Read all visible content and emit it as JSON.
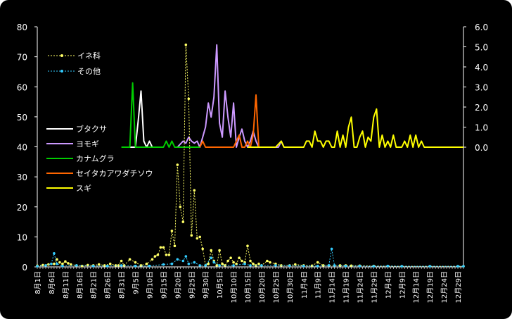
{
  "chart_data": [
    {
      "type": "line",
      "title": "",
      "xlabel": "",
      "ylabel": "",
      "ylim": [
        0,
        80
      ],
      "yticks": [
        "0",
        "10",
        "20",
        "30",
        "40",
        "50",
        "60",
        "70",
        "80"
      ],
      "x_tick_labels": [
        "8月1日",
        "8月6日",
        "8月11日",
        "8月16日",
        "8月21日",
        "8月26日",
        "8月31日",
        "9月5日",
        "9月10日",
        "9月15日",
        "9月20日",
        "9月25日",
        "9月30日",
        "10月5日",
        "10月10日",
        "10月15日",
        "10月20日",
        "10月25日",
        "10月30日",
        "11月4日",
        "11月9日",
        "11月14日",
        "11月19日",
        "11月24日",
        "11月29日",
        "12月4日",
        "12月9日",
        "12月14日",
        "12月19日",
        "12月24日",
        "12月29日"
      ],
      "legend_position": "top-left",
      "series": [
        {
          "name": "イネ科",
          "color": "#ffff66",
          "style": "dashed-markers",
          "points": [
            [
              0,
              0.4
            ],
            [
              2,
              0.6
            ],
            [
              4,
              0.8
            ],
            [
              6,
              1.0
            ],
            [
              7,
              2.5
            ],
            [
              8,
              1.5
            ],
            [
              9,
              1
            ],
            [
              10,
              1.8
            ],
            [
              11,
              1.2
            ],
            [
              12,
              0.8
            ],
            [
              14,
              0.5
            ],
            [
              16,
              0.3
            ],
            [
              18,
              0.6
            ],
            [
              20,
              0.5
            ],
            [
              22,
              0.8
            ],
            [
              24,
              0.5
            ],
            [
              26,
              1.0
            ],
            [
              28,
              0.5
            ],
            [
              29,
              0.5
            ],
            [
              30,
              2.0
            ],
            [
              31,
              0.5
            ],
            [
              33,
              2.5
            ],
            [
              35,
              1.5
            ],
            [
              37,
              0.5
            ],
            [
              39,
              1.0
            ],
            [
              41,
              2.5
            ],
            [
              42,
              3.5
            ],
            [
              43,
              4.0
            ],
            [
              44,
              6.5
            ],
            [
              45,
              6.5
            ],
            [
              46,
              4.0
            ],
            [
              47,
              4.0
            ],
            [
              48,
              12.0
            ],
            [
              49,
              7.0
            ],
            [
              50,
              34.0
            ],
            [
              51,
              20.0
            ],
            [
              52,
              15.0
            ],
            [
              53,
              74.0
            ],
            [
              54,
              56.0
            ],
            [
              55,
              10.5
            ],
            [
              56,
              25.5
            ],
            [
              57,
              9.5
            ],
            [
              58,
              10.0
            ],
            [
              59,
              6.0
            ],
            [
              60,
              0.5
            ],
            [
              61,
              1.0
            ],
            [
              62,
              5.5
            ],
            [
              63,
              2.0
            ],
            [
              64,
              0.5
            ],
            [
              65,
              5.5
            ],
            [
              66,
              1.0
            ],
            [
              67,
              0.5
            ],
            [
              68,
              2.0
            ],
            [
              69,
              3.0
            ],
            [
              70,
              1.5
            ],
            [
              71,
              1.0
            ],
            [
              72,
              3.0
            ],
            [
              73,
              2.0
            ],
            [
              74,
              1.5
            ],
            [
              75,
              7.0
            ],
            [
              76,
              2.0
            ],
            [
              77,
              1.0
            ],
            [
              78,
              0.5
            ],
            [
              79,
              1.0
            ],
            [
              80,
              0.5
            ],
            [
              82,
              2.0
            ],
            [
              83,
              1.5
            ],
            [
              85,
              1.0
            ],
            [
              87,
              0.5
            ],
            [
              90,
              0.5
            ],
            [
              92,
              0.8
            ],
            [
              95,
              0.5
            ],
            [
              98,
              0.4
            ],
            [
              100,
              1.5
            ],
            [
              102,
              0.5
            ],
            [
              104,
              0.5
            ],
            [
              108,
              0.5
            ],
            [
              110,
              0.5
            ],
            [
              112,
              0.4
            ],
            [
              115,
              0.4
            ],
            [
              120,
              0.3
            ],
            [
              130,
              0.2
            ],
            [
              140,
              0.2
            ],
            [
              150,
              0.2
            ],
            [
              152,
              0.2
            ]
          ]
        },
        {
          "name": "その他",
          "color": "#33ccff",
          "style": "dashed-markers",
          "points": [
            [
              0,
              0.2
            ],
            [
              3,
              0.5
            ],
            [
              5,
              1.0
            ],
            [
              6,
              4.5
            ],
            [
              7,
              1.0
            ],
            [
              9,
              0.3
            ],
            [
              14,
              0.5
            ],
            [
              20,
              0.3
            ],
            [
              25,
              0.3
            ],
            [
              30,
              0.5
            ],
            [
              35,
              0.3
            ],
            [
              40,
              0.3
            ],
            [
              45,
              0.8
            ],
            [
              48,
              1.0
            ],
            [
              50,
              2.5
            ],
            [
              52,
              2.0
            ],
            [
              53,
              3.5
            ],
            [
              54,
              1.0
            ],
            [
              56,
              1.5
            ],
            [
              58,
              0.5
            ],
            [
              60,
              0.5
            ],
            [
              62,
              3.0
            ],
            [
              63,
              1.5
            ],
            [
              65,
              0.5
            ],
            [
              70,
              0.5
            ],
            [
              74,
              1.0
            ],
            [
              76,
              0.5
            ],
            [
              80,
              0.5
            ],
            [
              85,
              0.5
            ],
            [
              90,
              0.4
            ],
            [
              95,
              0.3
            ],
            [
              100,
              0.3
            ],
            [
              104,
              0.5
            ],
            [
              105,
              6.0
            ],
            [
              106,
              0.5
            ],
            [
              110,
              0.3
            ],
            [
              115,
              0.3
            ],
            [
              120,
              0.2
            ],
            [
              125,
              0.3
            ],
            [
              130,
              0.2
            ],
            [
              140,
              0.2
            ],
            [
              150,
              0.2
            ],
            [
              152,
              0.2
            ]
          ]
        }
      ]
    },
    {
      "type": "line",
      "title": "",
      "ylim": [
        0,
        6.0
      ],
      "yticks": [
        "0.0",
        "1.0",
        "2.0",
        "3.0",
        "4.0",
        "5.0",
        "6.0"
      ],
      "legend_position": "left",
      "series": [
        {
          "name": "ブタクサ",
          "color": "#ffffff",
          "points": [
            [
              31,
              0
            ],
            [
              35,
              0
            ],
            [
              36,
              1.3
            ],
            [
              37,
              2.8
            ],
            [
              38,
              0.3
            ],
            [
              39,
              0
            ],
            [
              40,
              0.3
            ],
            [
              41,
              0
            ],
            [
              42,
              0
            ]
          ]
        },
        {
          "name": "ヨモギ",
          "color": "#cc99ff",
          "points": [
            [
              50,
              0
            ],
            [
              52,
              0.3
            ],
            [
              53,
              0.2
            ],
            [
              54,
              0.5
            ],
            [
              55,
              0.3
            ],
            [
              56,
              0.2
            ],
            [
              57,
              0.3
            ],
            [
              58,
              0
            ],
            [
              59,
              0.5
            ],
            [
              60,
              1.0
            ],
            [
              61,
              2.2
            ],
            [
              62,
              1.5
            ],
            [
              63,
              2.5
            ],
            [
              64,
              5.1
            ],
            [
              65,
              1.2
            ],
            [
              66,
              0.5
            ],
            [
              67,
              2.8
            ],
            [
              68,
              1.5
            ],
            [
              69,
              0.5
            ],
            [
              70,
              2.2
            ],
            [
              71,
              0
            ],
            [
              72,
              0.5
            ],
            [
              73,
              0.9
            ],
            [
              74,
              0.3
            ],
            [
              75,
              0
            ],
            [
              76,
              0.3
            ],
            [
              77,
              0.8
            ],
            [
              78,
              0.3
            ],
            [
              79,
              0
            ],
            [
              80,
              0
            ],
            [
              81,
              0
            ],
            [
              82,
              0
            ],
            [
              83,
              0
            ],
            [
              84,
              0
            ],
            [
              85,
              0
            ],
            [
              86,
              0
            ],
            [
              87,
              0.3
            ],
            [
              88,
              0
            ]
          ]
        },
        {
          "name": "カナムグラ",
          "color": "#00cc00",
          "points": [
            [
              30,
              0
            ],
            [
              33,
              0
            ],
            [
              34,
              3.2
            ],
            [
              35,
              0
            ],
            [
              40,
              0
            ],
            [
              45,
              0
            ],
            [
              46,
              0.3
            ],
            [
              47,
              0
            ],
            [
              48,
              0.3
            ],
            [
              49,
              0
            ],
            [
              50,
              0
            ],
            [
              55,
              0
            ],
            [
              58,
              0
            ]
          ]
        },
        {
          "name": "セイタカアワダチソウ",
          "color": "#ff6600",
          "points": [
            [
              58,
              0
            ],
            [
              59,
              0.3
            ],
            [
              60,
              0
            ],
            [
              64,
              0
            ],
            [
              65,
              0
            ],
            [
              70,
              0
            ],
            [
              72,
              0.6
            ],
            [
              73,
              0
            ],
            [
              74,
              0
            ],
            [
              75,
              0.3
            ],
            [
              76,
              0
            ],
            [
              77,
              0.6
            ],
            [
              78,
              2.6
            ],
            [
              79,
              0
            ],
            [
              80,
              0
            ]
          ]
        },
        {
          "name": "スギ",
          "color": "#ffff00",
          "points": [
            [
              75,
              0
            ],
            [
              85,
              0
            ],
            [
              87,
              0.3
            ],
            [
              88,
              0
            ],
            [
              95,
              0
            ],
            [
              96,
              0.3
            ],
            [
              97,
              0.3
            ],
            [
              98,
              0
            ],
            [
              99,
              0.8
            ],
            [
              100,
              0.3
            ],
            [
              101,
              0.3
            ],
            [
              102,
              0
            ],
            [
              103,
              0.3
            ],
            [
              104,
              0.3
            ],
            [
              105,
              0
            ],
            [
              106,
              0
            ],
            [
              107,
              0.8
            ],
            [
              108,
              0
            ],
            [
              109,
              0.6
            ],
            [
              110,
              0
            ],
            [
              111,
              1.0
            ],
            [
              112,
              1.5
            ],
            [
              113,
              0
            ],
            [
              114,
              0
            ],
            [
              115,
              0.5
            ],
            [
              116,
              0.8
            ],
            [
              117,
              0
            ],
            [
              118,
              0.5
            ],
            [
              119,
              0.3
            ],
            [
              120,
              1.5
            ],
            [
              121,
              1.9
            ],
            [
              122,
              0
            ],
            [
              123,
              0.6
            ],
            [
              124,
              0
            ],
            [
              125,
              0.3
            ],
            [
              126,
              0
            ],
            [
              127,
              0.6
            ],
            [
              128,
              0
            ],
            [
              129,
              0
            ],
            [
              130,
              0
            ],
            [
              131,
              0.3
            ],
            [
              132,
              0
            ],
            [
              133,
              0.6
            ],
            [
              134,
              0
            ],
            [
              135,
              0.6
            ],
            [
              136,
              0
            ],
            [
              137,
              0.3
            ],
            [
              138,
              0
            ],
            [
              140,
              0
            ],
            [
              145,
              0
            ],
            [
              150,
              0
            ],
            [
              152,
              0
            ]
          ]
        }
      ]
    }
  ]
}
